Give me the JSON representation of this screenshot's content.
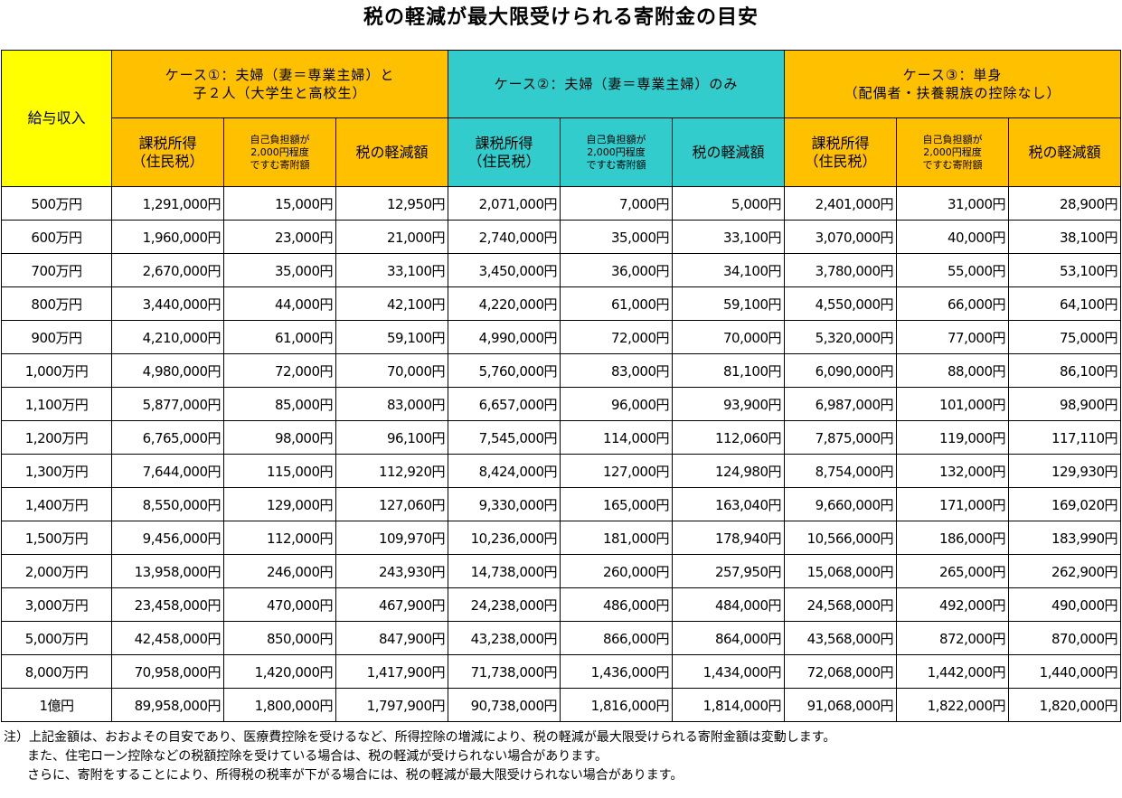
{
  "title": "税の軽減が最大限受けられる寄附金の目安",
  "table": {
    "income_header": "給与収入",
    "groups": [
      {
        "line1": "ケース①：夫婦（妻＝専業主婦）と",
        "line2": "子２人（大学生と高校生）",
        "color": "#ffc000"
      },
      {
        "line1": "ケース②：夫婦（妻＝専業主婦）のみ",
        "line2": "",
        "color": "#33cccc"
      },
      {
        "line1": "ケース③：単身",
        "line2": "（配偶者・扶養親族の控除なし）",
        "color": "#ffc000"
      }
    ],
    "sub_headers": {
      "taxable_line1": "課税所得",
      "taxable_line2": "（住民税）",
      "donation_line1": "自己負担額が",
      "donation_line2": "2,000円程度",
      "donation_line3": "ですむ寄附額",
      "reduction": "税の軽減額"
    },
    "rows": [
      [
        "500万円",
        "1,291,000円",
        "15,000円",
        "12,950円",
        "2,071,000円",
        "7,000円",
        "5,000円",
        "2,401,000円",
        "31,000円",
        "28,900円"
      ],
      [
        "600万円",
        "1,960,000円",
        "23,000円",
        "21,000円",
        "2,740,000円",
        "35,000円",
        "33,100円",
        "3,070,000円",
        "40,000円",
        "38,100円"
      ],
      [
        "700万円",
        "2,670,000円",
        "35,000円",
        "33,100円",
        "3,450,000円",
        "36,000円",
        "34,100円",
        "3,780,000円",
        "55,000円",
        "53,100円"
      ],
      [
        "800万円",
        "3,440,000円",
        "44,000円",
        "42,100円",
        "4,220,000円",
        "61,000円",
        "59,100円",
        "4,550,000円",
        "66,000円",
        "64,100円"
      ],
      [
        "900万円",
        "4,210,000円",
        "61,000円",
        "59,100円",
        "4,990,000円",
        "72,000円",
        "70,000円",
        "5,320,000円",
        "77,000円",
        "75,000円"
      ],
      [
        "1,000万円",
        "4,980,000円",
        "72,000円",
        "70,000円",
        "5,760,000円",
        "83,000円",
        "81,100円",
        "6,090,000円",
        "88,000円",
        "86,100円"
      ],
      [
        "1,100万円",
        "5,877,000円",
        "85,000円",
        "83,000円",
        "6,657,000円",
        "96,000円",
        "93,900円",
        "6,987,000円",
        "101,000円",
        "98,900円"
      ],
      [
        "1,200万円",
        "6,765,000円",
        "98,000円",
        "96,100円",
        "7,545,000円",
        "114,000円",
        "112,060円",
        "7,875,000円",
        "119,000円",
        "117,110円"
      ],
      [
        "1,300万円",
        "7,644,000円",
        "115,000円",
        "112,920円",
        "8,424,000円",
        "127,000円",
        "124,980円",
        "8,754,000円",
        "132,000円",
        "129,930円"
      ],
      [
        "1,400万円",
        "8,550,000円",
        "129,000円",
        "127,060円",
        "9,330,000円",
        "165,000円",
        "163,040円",
        "9,660,000円",
        "171,000円",
        "169,020円"
      ],
      [
        "1,500万円",
        "9,456,000円",
        "112,000円",
        "109,970円",
        "10,236,000円",
        "181,000円",
        "178,940円",
        "10,566,000円",
        "186,000円",
        "183,990円"
      ],
      [
        "2,000万円",
        "13,958,000円",
        "246,000円",
        "243,930円",
        "14,738,000円",
        "260,000円",
        "257,950円",
        "15,068,000円",
        "265,000円",
        "262,900円"
      ],
      [
        "3,000万円",
        "23,458,000円",
        "470,000円",
        "467,900円",
        "24,238,000円",
        "486,000円",
        "484,000円",
        "24,568,000円",
        "492,000円",
        "490,000円"
      ],
      [
        "5,000万円",
        "42,458,000円",
        "850,000円",
        "847,900円",
        "43,238,000円",
        "866,000円",
        "864,000円",
        "43,568,000円",
        "872,000円",
        "870,000円"
      ],
      [
        "8,000万円",
        "70,958,000円",
        "1,420,000円",
        "1,417,900円",
        "71,738,000円",
        "1,436,000円",
        "1,434,000円",
        "72,068,000円",
        "1,442,000円",
        "1,440,000円"
      ],
      [
        "1億円",
        "89,958,000円",
        "1,800,000円",
        "1,797,900円",
        "90,738,000円",
        "1,816,000円",
        "1,814,000円",
        "91,068,000円",
        "1,822,000円",
        "1,820,000円"
      ]
    ]
  },
  "notes": [
    "注）上記金額は、おおよその目安であり、医療費控除を受けるなど、所得控除の増減により、税の軽減が最大限受けられる寄附金額は変動します。",
    "また、住宅ローン控除などの税額控除を受けている場合は、税の軽減が受けられない場合があります。",
    "さらに、寄附をすることにより、所得税の税率が下がる場合には、税の軽減が最大限受けられない場合があります。"
  ]
}
